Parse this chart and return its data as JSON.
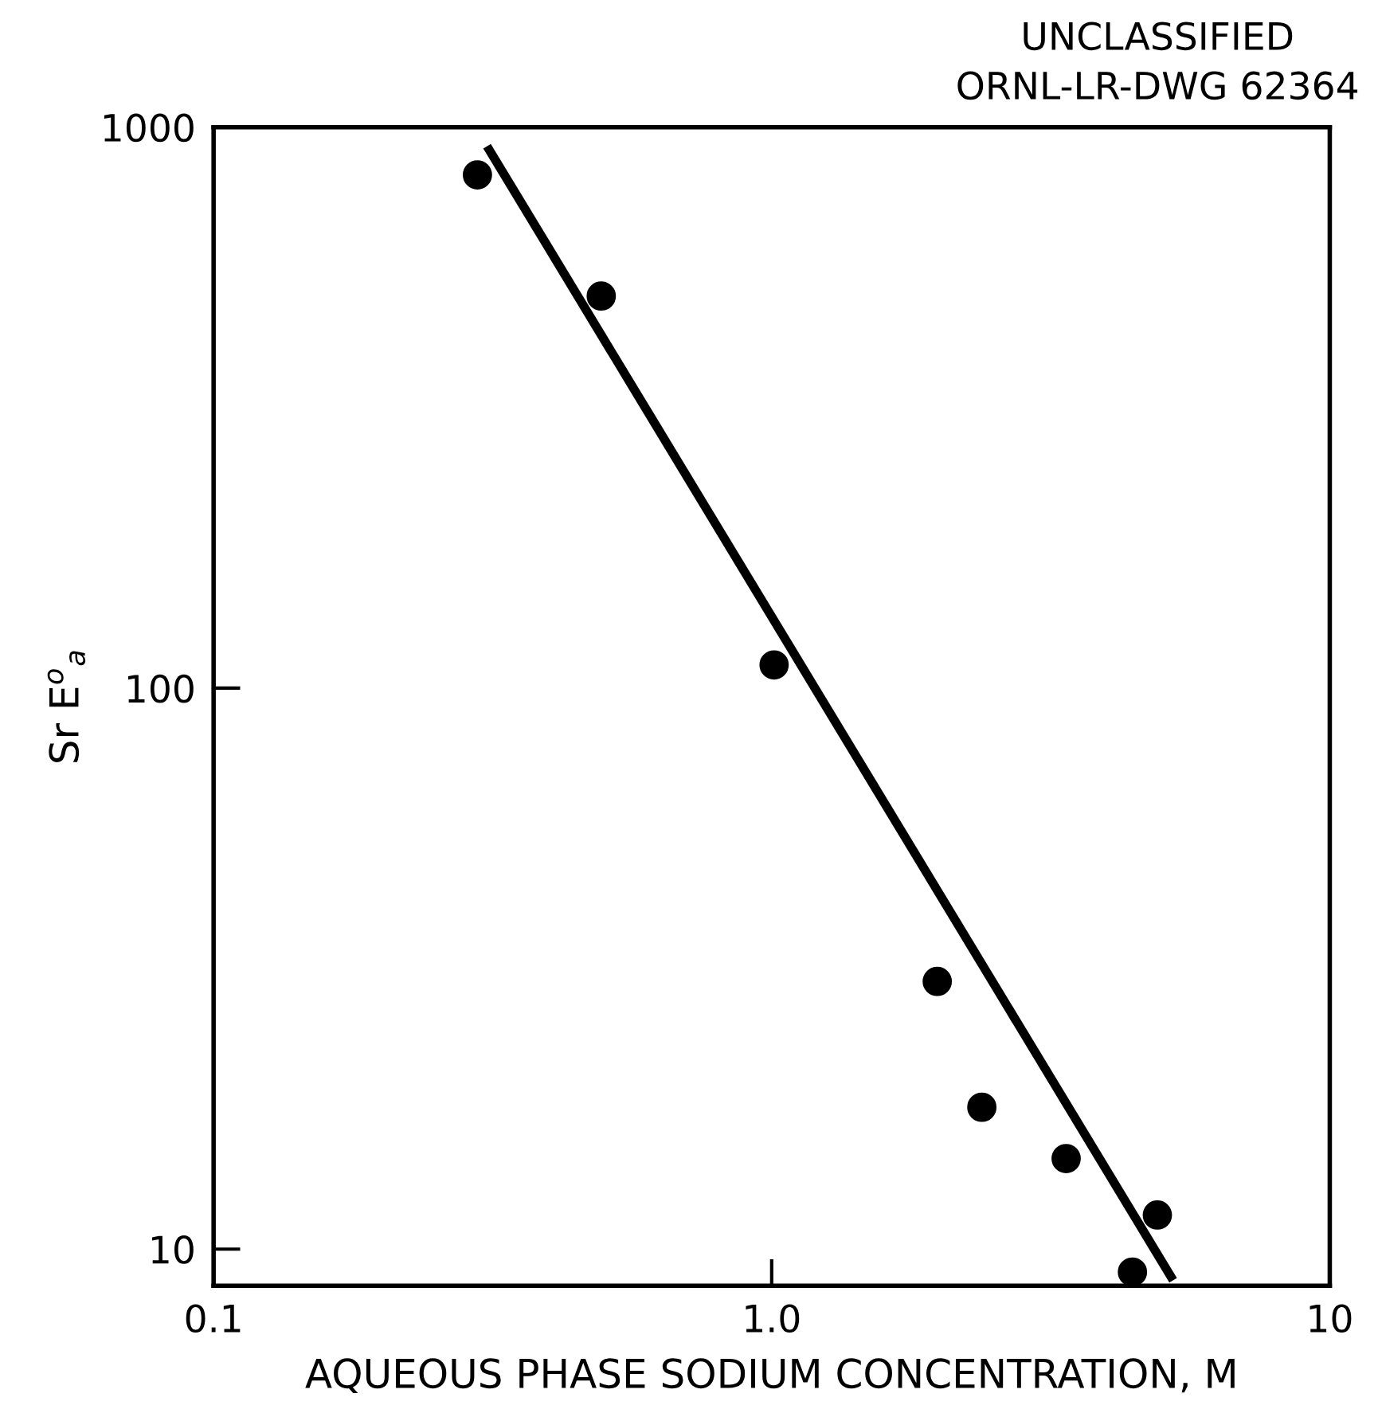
{
  "chart_data": {
    "type": "scatter",
    "xlabel": "AQUEOUS PHASE SODIUM CONCENTRATION, M",
    "ylabel": "Sr E$^{o}$$_{a}$",
    "annotations": [
      "UNCLASSIFIED",
      "ORNL-LR-DWG 62364"
    ],
    "log": "xy",
    "xlim": [
      0.1,
      10
    ],
    "ylim": [
      8.6,
      1000
    ],
    "xticks": [
      0.1,
      {
        "value": 1,
        "label": "1.0"
      },
      10
    ],
    "yticks": [
      10,
      100,
      1000
    ],
    "grid": false,
    "marker": "circle",
    "series": [
      {
        "color": "#000000",
        "x": [
          0.297,
          0.495,
          1.01,
          1.98,
          2.38,
          3.37,
          4.91,
          4.43
        ],
        "values": [
          822,
          500,
          110,
          30,
          17.9,
          14.5,
          11.5,
          9.1
        ]
      },
      {
        "type": "line",
        "color": "#000000",
        "marker": "none",
        "line_style": "solid",
        "x": [
          0.309,
          5.24
        ],
        "values": [
          925,
          8.8
        ]
      }
    ]
  }
}
